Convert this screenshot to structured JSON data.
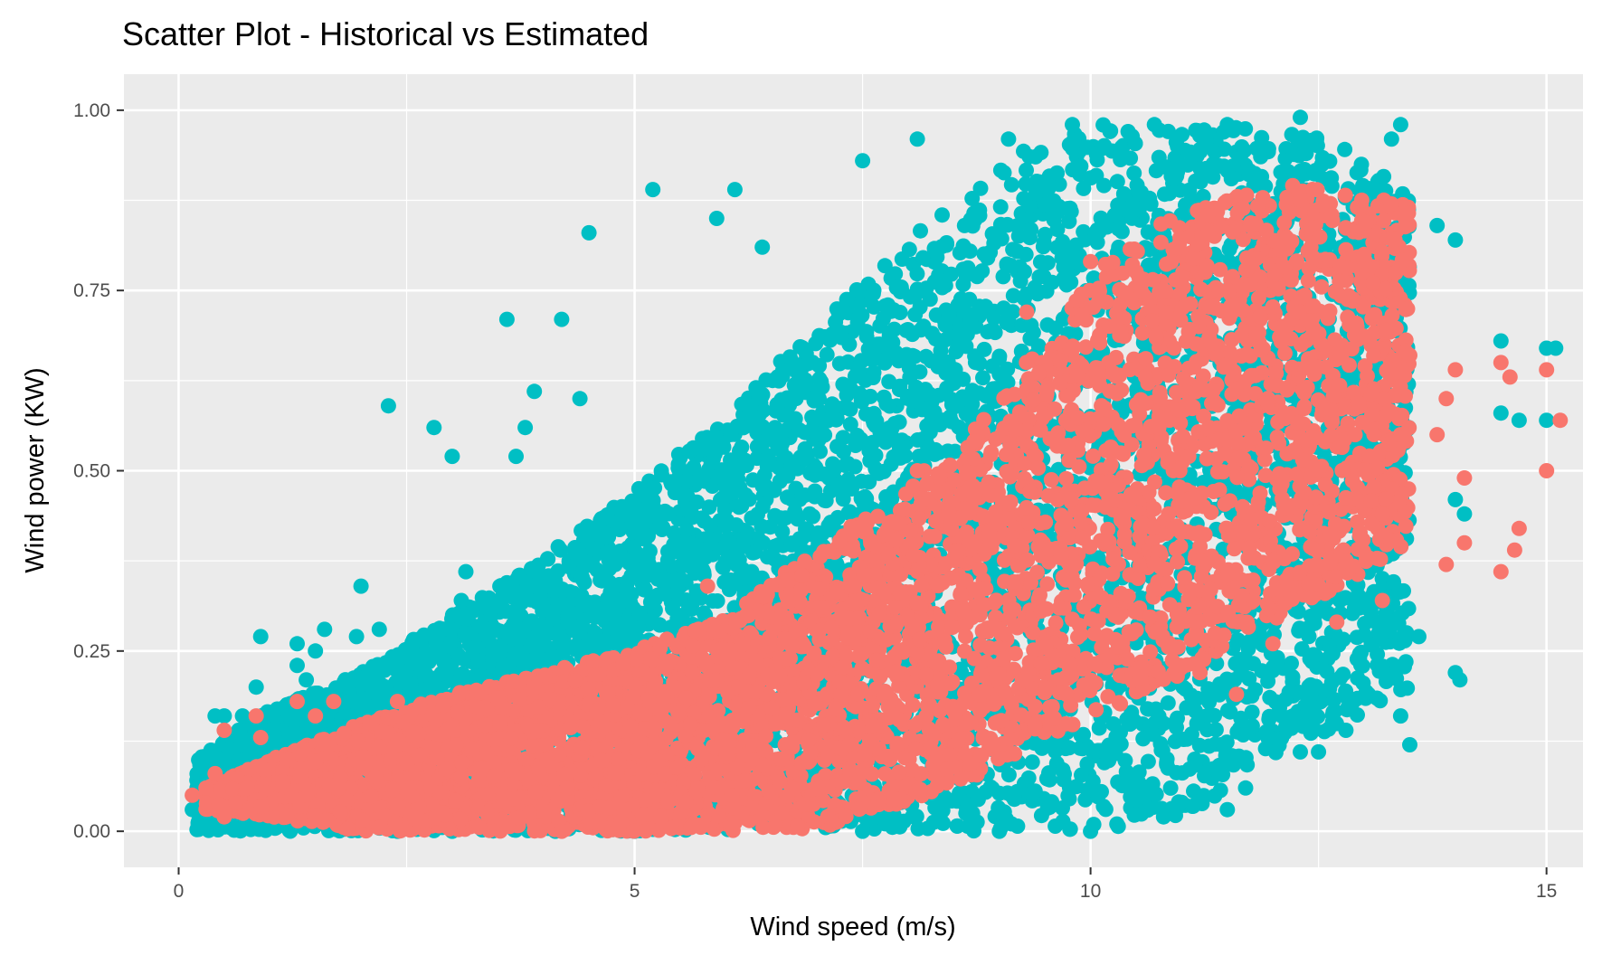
{
  "chart_data": {
    "type": "scatter",
    "title": "Scatter Plot - Historical vs Estimated",
    "xlabel": "Wind speed (m/s)",
    "ylabel": "Wind power (KW)",
    "xlim": [
      -0.6,
      15.4
    ],
    "ylim": [
      -0.05,
      1.05
    ],
    "x_ticks": [
      0,
      5,
      10,
      15
    ],
    "x_tick_labels": [
      "0",
      "5",
      "10",
      "15"
    ],
    "y_ticks": [
      0,
      0.25,
      0.5,
      0.75,
      1.0
    ],
    "y_tick_labels": [
      "0.00",
      "0.25",
      "0.50",
      "0.75",
      "1.00"
    ],
    "grid": true,
    "legend": "none",
    "colors": {
      "panel": "#ebebeb",
      "grid": "#ffffff",
      "historical": "#00bfc4",
      "estimated": "#f8766d"
    },
    "series": [
      {
        "color": "#00bfc4",
        "envelope": {
          "x": [
            0.2,
            1,
            2,
            3,
            4,
            5,
            6,
            7,
            8,
            9,
            10,
            11,
            12,
            12.8,
            13.5
          ],
          "lower": [
            0.0,
            0.0,
            0.0,
            0.0,
            0.0,
            0.0,
            0.0,
            0.0,
            0.0,
            0.0,
            0.0,
            0.02,
            0.1,
            0.15,
            0.2
          ],
          "upper": [
            0.1,
            0.17,
            0.22,
            0.3,
            0.38,
            0.47,
            0.58,
            0.7,
            0.82,
            0.93,
            0.98,
            0.98,
            0.98,
            0.95,
            0.88
          ]
        },
        "points": [
          [
            0.15,
            0.03
          ],
          [
            0.4,
            0.16
          ],
          [
            0.5,
            0.16
          ],
          [
            0.5,
            0.04
          ],
          [
            0.9,
            0.27
          ],
          [
            0.85,
            0.2
          ],
          [
            1.3,
            0.26
          ],
          [
            1.3,
            0.23
          ],
          [
            1.6,
            0.28
          ],
          [
            1.5,
            0.25
          ],
          [
            1.4,
            0.21
          ],
          [
            2.0,
            0.34
          ],
          [
            2.2,
            0.28
          ],
          [
            1.95,
            0.27
          ],
          [
            2.3,
            0.59
          ],
          [
            2.8,
            0.56
          ],
          [
            3.0,
            0.52
          ],
          [
            3.1,
            0.32
          ],
          [
            3.15,
            0.36
          ],
          [
            3.6,
            0.71
          ],
          [
            3.9,
            0.61
          ],
          [
            3.8,
            0.56
          ],
          [
            3.7,
            0.52
          ],
          [
            4.2,
            0.71
          ],
          [
            4.4,
            0.6
          ],
          [
            4.5,
            0.83
          ],
          [
            5.2,
            0.89
          ],
          [
            5.9,
            0.85
          ],
          [
            6.1,
            0.89
          ],
          [
            6.4,
            0.81
          ],
          [
            7.5,
            0.93
          ],
          [
            8.1,
            0.96
          ],
          [
            9.1,
            0.96
          ],
          [
            9.8,
            0.98
          ],
          [
            10.7,
            0.98
          ],
          [
            11.5,
            0.98
          ],
          [
            12.3,
            0.99
          ],
          [
            13.4,
            0.98
          ],
          [
            13.3,
            0.96
          ],
          [
            14.0,
            0.82
          ],
          [
            13.8,
            0.84
          ],
          [
            14.5,
            0.68
          ],
          [
            14.5,
            0.58
          ],
          [
            14.7,
            0.57
          ],
          [
            15.0,
            0.67
          ],
          [
            15.1,
            0.67
          ],
          [
            15.0,
            0.57
          ],
          [
            14.0,
            0.46
          ],
          [
            14.1,
            0.44
          ],
          [
            14.05,
            0.21
          ],
          [
            14.0,
            0.22
          ],
          [
            13.6,
            0.27
          ],
          [
            13.4,
            0.16
          ],
          [
            13.5,
            0.12
          ],
          [
            12.8,
            0.14
          ],
          [
            12.5,
            0.11
          ],
          [
            12.3,
            0.11
          ],
          [
            11.7,
            0.06
          ],
          [
            11.5,
            0.03
          ],
          [
            11.0,
            0.04
          ],
          [
            10.8,
            0.02
          ],
          [
            10.0,
            0.0
          ],
          [
            9.0,
            0.0
          ],
          [
            7.5,
            0.0
          ],
          [
            5.0,
            0.0
          ],
          [
            3.0,
            0.0
          ],
          [
            2.4,
            0.0
          ],
          [
            1.6,
            0.01
          ],
          [
            1.2,
            0.03
          ],
          [
            1.0,
            0.05
          ],
          [
            1.1,
            0.12
          ],
          [
            0.7,
            0.16
          ]
        ]
      },
      {
        "color": "#f8766d",
        "envelope": {
          "x": [
            0.3,
            1,
            2,
            3,
            4,
            5,
            6,
            7,
            8,
            9,
            10,
            10.8,
            11.5,
            12.2,
            13,
            13.5
          ],
          "lower": [
            0.03,
            0.02,
            0.0,
            0.0,
            0.0,
            0.0,
            0.0,
            0.0,
            0.04,
            0.09,
            0.16,
            0.2,
            0.26,
            0.3,
            0.36,
            0.4
          ],
          "upper": [
            0.06,
            0.1,
            0.15,
            0.19,
            0.22,
            0.25,
            0.3,
            0.39,
            0.48,
            0.6,
            0.77,
            0.85,
            0.88,
            0.9,
            0.88,
            0.87
          ]
        },
        "points": [
          [
            0.15,
            0.05
          ],
          [
            0.3,
            0.06
          ],
          [
            0.4,
            0.08
          ],
          [
            0.5,
            0.02
          ],
          [
            0.5,
            0.14
          ],
          [
            0.75,
            0.06
          ],
          [
            0.85,
            0.16
          ],
          [
            0.9,
            0.13
          ],
          [
            0.9,
            0.09
          ],
          [
            1.3,
            0.18
          ],
          [
            1.7,
            0.18
          ],
          [
            1.5,
            0.16
          ],
          [
            1.2,
            0.1
          ],
          [
            2.4,
            0.18
          ],
          [
            2.1,
            0.15
          ],
          [
            5.8,
            0.34
          ],
          [
            8.1,
            0.5
          ],
          [
            9.3,
            0.72
          ],
          [
            10.0,
            0.79
          ],
          [
            13.0,
            0.8
          ],
          [
            13.1,
            0.76
          ],
          [
            13.3,
            0.87
          ],
          [
            13.5,
            0.66
          ],
          [
            13.9,
            0.6
          ],
          [
            14.0,
            0.64
          ],
          [
            13.8,
            0.55
          ],
          [
            14.1,
            0.49
          ],
          [
            13.9,
            0.37
          ],
          [
            14.1,
            0.4
          ],
          [
            14.5,
            0.65
          ],
          [
            14.6,
            0.63
          ],
          [
            14.5,
            0.36
          ],
          [
            14.7,
            0.42
          ],
          [
            14.65,
            0.39
          ],
          [
            15.0,
            0.64
          ],
          [
            15.0,
            0.5
          ],
          [
            15.15,
            0.57
          ],
          [
            13.2,
            0.32
          ],
          [
            13.2,
            0.44
          ],
          [
            12.7,
            0.29
          ],
          [
            12.0,
            0.26
          ],
          [
            11.6,
            0.19
          ],
          [
            11.2,
            0.22
          ],
          [
            12.5,
            0.5
          ],
          [
            12.9,
            0.55
          ]
        ]
      }
    ]
  }
}
